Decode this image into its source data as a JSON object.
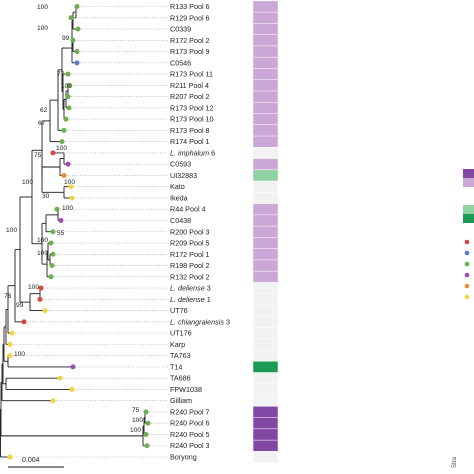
{
  "tips": [
    {
      "name": "R133 Pool 6",
      "color": "green",
      "strain": "lilac"
    },
    {
      "name": "R129 Pool 6",
      "color": "green",
      "strain": "lilac"
    },
    {
      "name": "C0339",
      "color": "green",
      "strain": "lilac"
    },
    {
      "name": "R172 Pool 2",
      "color": "green",
      "strain": "lilac"
    },
    {
      "name": "R173 Pool 9",
      "color": "green",
      "strain": "lilac"
    },
    {
      "name": "C0546",
      "color": "blue",
      "strain": "lilac"
    },
    {
      "name": "R173 Pool 11",
      "color": "green",
      "strain": "lilac"
    },
    {
      "name": "R211 Pool 4",
      "color": "green",
      "strain": "lilac"
    },
    {
      "name": "R207 Pool 2",
      "color": "green",
      "strain": "lilac"
    },
    {
      "name": "R173 Pool 12",
      "color": "green",
      "strain": "lilac"
    },
    {
      "name": "R173 Pool 10",
      "color": "green",
      "strain": "lilac"
    },
    {
      "name": "R173 Pool 8",
      "color": "green",
      "strain": "lilac"
    },
    {
      "name": "R174 Pool 1",
      "color": "green",
      "strain": "lilac"
    },
    {
      "name_italic": "L. imphalum",
      "name_suffix": "6",
      "color": "red",
      "strain": "none"
    },
    {
      "name": "C0593",
      "color": "purple",
      "strain": "lilac"
    },
    {
      "name": "UI32883",
      "color": "orange",
      "strain": "green_light"
    },
    {
      "name": "Kato",
      "color": "yellow",
      "strain": "none"
    },
    {
      "name": "Ikeda",
      "color": "yellow",
      "strain": "none"
    },
    {
      "name": "R44 Pool 4",
      "color": "green",
      "strain": "lilac"
    },
    {
      "name": "C0438",
      "color": "purple",
      "strain": "lilac"
    },
    {
      "name": "R200 Pool 3",
      "color": "green",
      "strain": "lilac"
    },
    {
      "name": "R209 Pool 5",
      "color": "green",
      "strain": "lilac"
    },
    {
      "name": "R172 Pool 1",
      "color": "green",
      "strain": "lilac"
    },
    {
      "name": "R198 Pool 2",
      "color": "green",
      "strain": "lilac"
    },
    {
      "name": "R132 Pool 2",
      "color": "green",
      "strain": "lilac"
    },
    {
      "name_italic": "L. deliense",
      "name_suffix": "3",
      "color": "red",
      "strain": "none"
    },
    {
      "name_italic": "L. deliense",
      "name_suffix": "1",
      "color": "red",
      "strain": "none"
    },
    {
      "name": "UT76",
      "color": "yellow",
      "strain": "none"
    },
    {
      "name_italic": "L. chiangraiensis",
      "name_suffix": "3",
      "color": "red",
      "strain": "none"
    },
    {
      "name": "UT176",
      "color": "yellow",
      "strain": "none"
    },
    {
      "name": "Karp",
      "color": "yellow",
      "strain": "none"
    },
    {
      "name": "TA763",
      "color": "yellow",
      "strain": "none"
    },
    {
      "name": "T14",
      "color": "purple",
      "strain": "green_dark"
    },
    {
      "name": "TA686",
      "color": "yellow",
      "strain": "none"
    },
    {
      "name": "FPW1038",
      "color": "yellow",
      "strain": "none"
    },
    {
      "name": "Gilliam",
      "color": "yellow",
      "strain": "none"
    },
    {
      "name": "R240 Pool 7",
      "color": "green",
      "strain": "purple_dark"
    },
    {
      "name": "R240 Pool 6",
      "color": "green",
      "strain": "purple_dark"
    },
    {
      "name": "R240 Pool 5",
      "color": "green",
      "strain": "purple_dark"
    },
    {
      "name": "R240 Pool 3",
      "color": "green",
      "strain": "purple_dark"
    },
    {
      "name": "Boryong",
      "color": "yellow",
      "strain": "none"
    }
  ],
  "bootstrap": {
    "b1": "100",
    "b2": "100",
    "b3": "99",
    "b4": "77",
    "b5": "100",
    "b6": "62",
    "b7": "67",
    "b8": "100",
    "b9": "75",
    "b10": "100",
    "b11": "30",
    "b12": "100",
    "b13": "100",
    "b14": "55",
    "b15": "100",
    "b16": "100",
    "b17": "100",
    "b18": "100",
    "b19": "78",
    "b20": "99",
    "b21": "100",
    "b22": "75",
    "b23": "100",
    "b24": "100"
  },
  "colors": {
    "green": "#6ab04c",
    "blue": "#4f7fc2",
    "red": "#d9463a",
    "purple": "#9c4fb1",
    "orange": "#ef8c32",
    "yellow": "#f4d43e",
    "strain_lilac": "#c9a7d6",
    "strain_green_light": "#8fd1a3",
    "strain_green_dark": "#1a9a52",
    "strain_purple_dark": "#8248a4",
    "strain_none": "#f2f2f2"
  },
  "legend": {
    "swatches": [
      "purple_dark",
      "strain_lilac",
      "strain_green_light",
      "strain_green_dark"
    ],
    "dots": [
      "red",
      "blue",
      "green",
      "purple",
      "orange",
      "yellow"
    ]
  },
  "scale_label": "0.004",
  "column_label": "Stra"
}
